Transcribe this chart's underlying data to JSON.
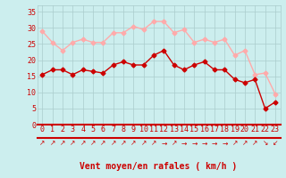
{
  "x": [
    0,
    1,
    2,
    3,
    4,
    5,
    6,
    7,
    8,
    9,
    10,
    11,
    12,
    13,
    14,
    15,
    16,
    17,
    18,
    19,
    20,
    21,
    22,
    23
  ],
  "avg_wind": [
    15.5,
    17,
    17,
    15.5,
    17,
    16.5,
    16,
    18.5,
    19.5,
    18.5,
    18.5,
    21.5,
    23,
    18.5,
    17,
    18.5,
    19.5,
    17,
    17,
    14,
    13,
    14,
    5,
    7
  ],
  "gust_wind": [
    29,
    25.5,
    23,
    25.5,
    26.5,
    25.5,
    25.5,
    28.5,
    28.5,
    30.5,
    29.5,
    32,
    32,
    28.5,
    29.5,
    25.5,
    26.5,
    25.5,
    26.5,
    21.5,
    23,
    15.5,
    16,
    9.5
  ],
  "avg_color": "#cc0000",
  "gust_color": "#ffaaaa",
  "bg_color": "#cceeee",
  "grid_color": "#aacccc",
  "xlabel": "Vent moyen/en rafales ( km/h )",
  "xlabel_color": "#cc0000",
  "xlabel_fontsize": 7,
  "tick_color": "#cc0000",
  "tick_fontsize": 6,
  "ylim": [
    0,
    37
  ],
  "yticks": [
    0,
    5,
    10,
    15,
    20,
    25,
    30,
    35
  ],
  "marker": "D",
  "markersize": 2.5,
  "linewidth": 1.0,
  "arrow_chars": [
    "↗",
    "↗",
    "↗",
    "↗",
    "↗",
    "↗",
    "↗",
    "↗",
    "↗",
    "↗",
    "↗",
    "↗",
    "→",
    "↗",
    "→",
    "→",
    "→",
    "→",
    "→",
    "↗",
    "↗",
    "↗",
    "↘",
    "↙"
  ]
}
